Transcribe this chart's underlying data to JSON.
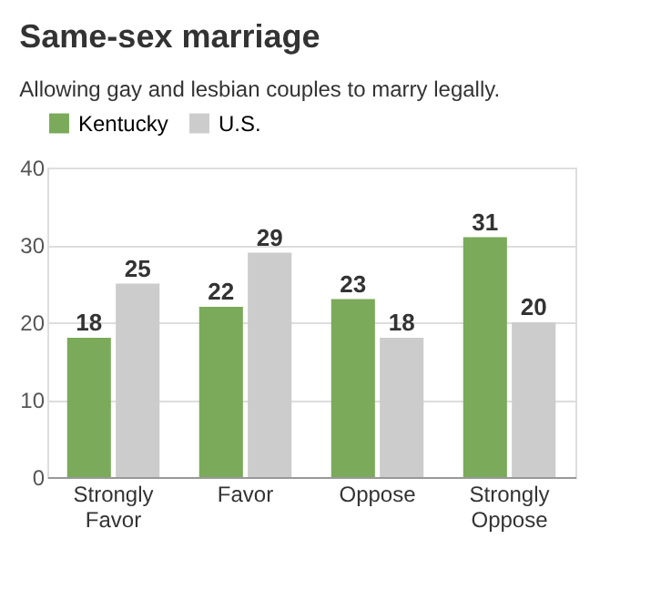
{
  "chart_data": {
    "type": "bar",
    "title": "Same-sex marriage",
    "subtitle": "Allowing gay and lesbian couples to marry legally.",
    "categories": [
      "Strongly Favor",
      "Favor",
      "Oppose",
      "Strongly Oppose"
    ],
    "series": [
      {
        "name": "Kentucky",
        "color": "#7aaa5a",
        "values": [
          18,
          22,
          23,
          31
        ]
      },
      {
        "name": "U.S.",
        "color": "#cccccc",
        "values": [
          25,
          29,
          18,
          20
        ]
      }
    ],
    "ylim": [
      0,
      40
    ],
    "yticks": [
      0,
      10,
      20,
      30,
      40
    ],
    "grid": "y",
    "legend": "top",
    "data_labels": true
  }
}
